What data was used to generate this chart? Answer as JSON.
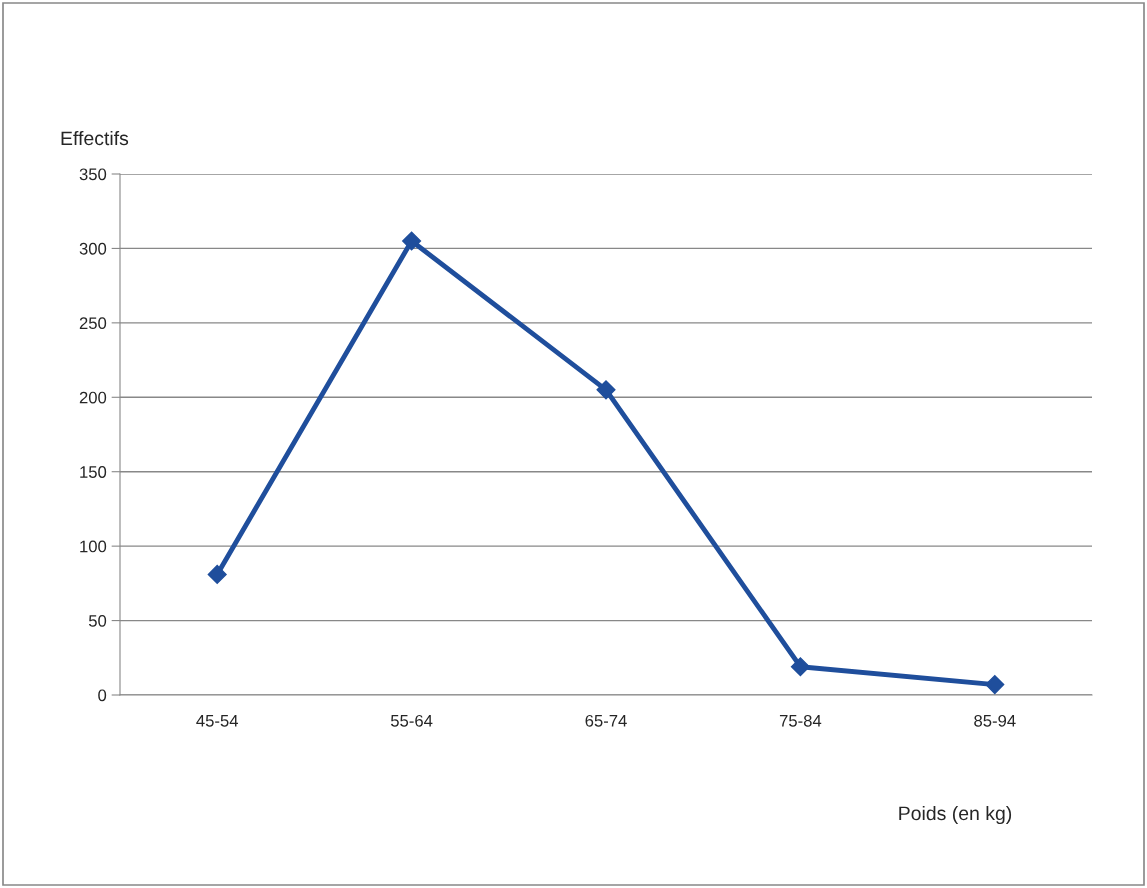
{
  "chart_data": {
    "type": "line",
    "ylabel": "Effectifs",
    "xlabel": "Poids (en kg)",
    "categories": [
      "45-54",
      "55-64",
      "65-74",
      "75-84",
      "85-94"
    ],
    "series": [
      {
        "color": "#1f4e9c",
        "values": [
          81,
          305,
          205,
          19,
          7
        ]
      }
    ],
    "ylim": [
      0,
      350
    ],
    "yticks": [
      0,
      50,
      100,
      150,
      200,
      250,
      300,
      350
    ],
    "grid": "y",
    "marker": "diamond",
    "line_style": "solid",
    "legend": false
  }
}
